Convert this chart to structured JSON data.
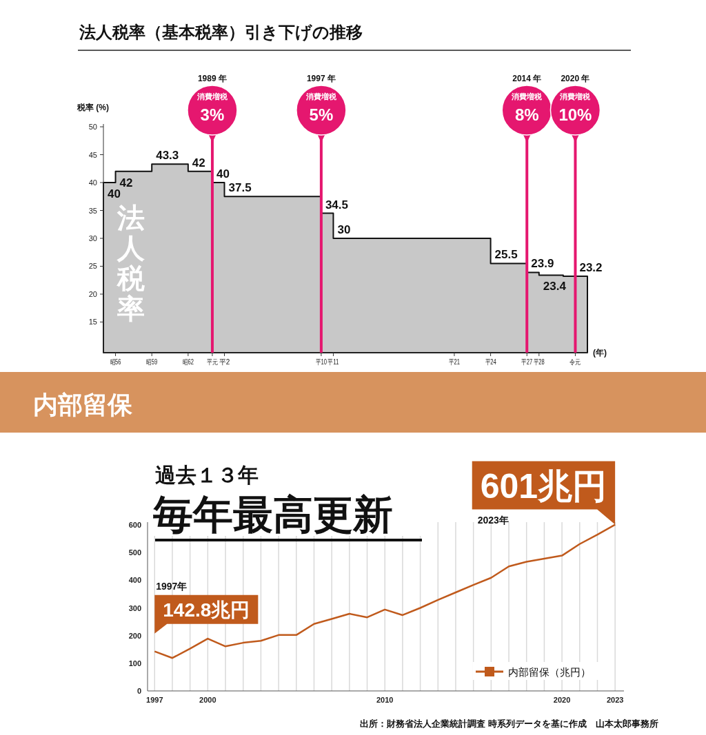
{
  "chart_data": [
    {
      "type": "area",
      "title": "法人税率（基本税率）引き下げの推移",
      "ylabel": "税率 (%)",
      "xlabel": "(年)",
      "categories": [
        null,
        "昭56",
        null,
        null,
        "昭59",
        null,
        null,
        "昭62",
        null,
        "平元",
        "平2",
        null,
        null,
        null,
        null,
        null,
        null,
        null,
        "平10",
        "平11",
        null,
        null,
        null,
        null,
        null,
        null,
        null,
        null,
        null,
        "平21",
        null,
        null,
        "平24",
        null,
        null,
        "平27",
        "平28",
        null,
        null,
        "令元",
        null
      ],
      "series": [
        {
          "name": "法人税率",
          "color": "#c8c8c8",
          "values": [
            40,
            42,
            42,
            42,
            43.3,
            43.3,
            43.3,
            42,
            42,
            40,
            37.5,
            37.5,
            37.5,
            37.5,
            37.5,
            37.5,
            37.5,
            37.5,
            34.5,
            30,
            30,
            30,
            30,
            30,
            30,
            30,
            30,
            30,
            30,
            30,
            30,
            30,
            25.5,
            25.5,
            25.5,
            23.9,
            23.4,
            23.4,
            23.2,
            23.2,
            23.2
          ],
          "value_labels": [
            "40",
            "42",
            null,
            null,
            "43.3",
            null,
            null,
            "42",
            null,
            "40",
            "37.5",
            null,
            null,
            null,
            null,
            null,
            null,
            null,
            "34.5",
            "30",
            null,
            null,
            null,
            null,
            null,
            null,
            null,
            null,
            null,
            null,
            null,
            null,
            "25.5",
            null,
            null,
            "23.9",
            "23.4",
            null,
            "23.2",
            null,
            null
          ]
        }
      ],
      "ylim": [
        9.5,
        50.5
      ],
      "yticks": [
        15,
        20,
        25,
        30,
        35,
        40,
        45,
        50
      ],
      "ref_lines": [
        {
          "axis": "x",
          "value": "平元",
          "label": "1989 年",
          "color": "#e5176f"
        },
        {
          "axis": "x",
          "value": "平10",
          "label": "1997 年",
          "color": "#e5176f"
        },
        {
          "axis": "x",
          "value": "平27",
          "label": "2014 年",
          "color": "#e5176f"
        },
        {
          "axis": "x",
          "value": "令元",
          "label": "2020 年",
          "color": "#e5176f"
        }
      ],
      "annotations": [
        "消費増税 3%",
        "消費増税 5%",
        "消費増税 8%",
        "消費増税 10%"
      ]
    },
    {
      "type": "line",
      "title": "内部留保",
      "subtitle": "過去１３年",
      "x": [
        1997,
        1998,
        1999,
        2000,
        2001,
        2002,
        2003,
        2004,
        2005,
        2006,
        2007,
        2008,
        2009,
        2010,
        2011,
        2012,
        2013,
        2014,
        2015,
        2016,
        2017,
        2018,
        2019,
        2020,
        2021,
        2022,
        2023
      ],
      "series": [
        {
          "name": "内部留保（兆円）",
          "color": "#c05a1c",
          "values": [
            142.8,
            119,
            153,
            189,
            161,
            174,
            181,
            202,
            202,
            242,
            260,
            279,
            266,
            294,
            274,
            300,
            329,
            356,
            383,
            409,
            450,
            467,
            478,
            489,
            531,
            565,
            601
          ]
        }
      ],
      "xlim": [
        1996.6,
        2023.5
      ],
      "ylim": [
        0,
        610
      ],
      "yticks": [
        0,
        100,
        200,
        300,
        400,
        500,
        600
      ],
      "xticks": [
        1997,
        {
          "value": 1998,
          "label": null
        },
        {
          "value": 1999,
          "label": null
        },
        2000,
        {
          "value": 2001,
          "label": null
        },
        {
          "value": 2002,
          "label": null
        },
        {
          "value": 2003,
          "label": null
        },
        {
          "value": 2004,
          "label": null
        },
        {
          "value": 2005,
          "label": null
        },
        {
          "value": 2006,
          "label": null
        },
        {
          "value": 2007,
          "label": null
        },
        {
          "value": 2008,
          "label": null
        },
        {
          "value": 2009,
          "label": null
        },
        2010,
        {
          "value": 2011,
          "label": null
        },
        {
          "value": 2012,
          "label": null
        },
        {
          "value": 2013,
          "label": null
        },
        {
          "value": 2014,
          "label": null
        },
        {
          "value": 2015,
          "label": null
        },
        {
          "value": 2016,
          "label": null
        },
        {
          "value": 2017,
          "label": null
        },
        {
          "value": 2018,
          "label": null
        },
        {
          "value": 2019,
          "label": null
        },
        2020,
        {
          "value": 2021,
          "label": null
        },
        {
          "value": 2022,
          "label": null
        },
        2023
      ],
      "grid": "x",
      "legend": "bottom right",
      "annotations": [
        "毎年最高更新",
        {
          "text": "601兆円",
          "x": 2023,
          "y": 601
        },
        {
          "text": "142.8兆円",
          "x": 1997,
          "y": 142.8
        },
        "2023年",
        "1997年",
        "出所：財務省法人企業統計調査 時系列データを基に作成　山本太郎事務所"
      ]
    }
  ]
}
